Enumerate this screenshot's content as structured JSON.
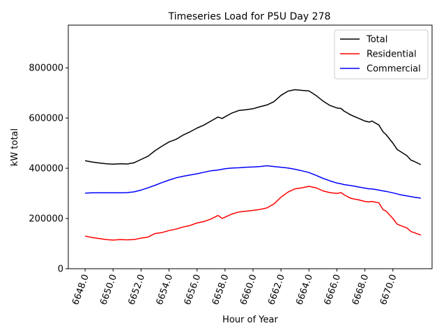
{
  "chart_data": {
    "type": "line",
    "title": "Timeseries Load for P5U   Day 278",
    "xlabel": "Hour of Year",
    "ylabel": "kW total",
    "xlim": [
      6646.8,
      6672.8
    ],
    "ylim": [
      0,
      970000
    ],
    "xticks": [
      6648,
      6650,
      6652,
      6654,
      6656,
      6658,
      6660,
      6662,
      6664,
      6666,
      6668,
      6670
    ],
    "xtick_labels": [
      "6648.0",
      "6650.0",
      "6652.0",
      "6654.0",
      "6656.0",
      "6658.0",
      "6660.0",
      "6662.0",
      "6664.0",
      "6666.0",
      "6668.0",
      "6670.0"
    ],
    "yticks": [
      0,
      200000,
      400000,
      600000,
      800000
    ],
    "ytick_labels": [
      "0",
      "200000",
      "400000",
      "600000",
      "800000"
    ],
    "legend_position": "top-right",
    "series": [
      {
        "name": "Total",
        "color": "#000000",
        "points": [
          [
            6648.0,
            430000
          ],
          [
            6648.5,
            425000
          ],
          [
            6649.0,
            421000
          ],
          [
            6649.5,
            418000
          ],
          [
            6650.0,
            416000
          ],
          [
            6650.5,
            418000
          ],
          [
            6651.0,
            417000
          ],
          [
            6651.5,
            422000
          ],
          [
            6652.0,
            435000
          ],
          [
            6652.5,
            448000
          ],
          [
            6653.0,
            470000
          ],
          [
            6653.5,
            488000
          ],
          [
            6654.0,
            505000
          ],
          [
            6654.5,
            515000
          ],
          [
            6655.0,
            532000
          ],
          [
            6655.5,
            545000
          ],
          [
            6656.0,
            560000
          ],
          [
            6656.5,
            572000
          ],
          [
            6657.0,
            588000
          ],
          [
            6657.5,
            604000
          ],
          [
            6657.8,
            598000
          ],
          [
            6658.0,
            605000
          ],
          [
            6658.5,
            620000
          ],
          [
            6659.0,
            630000
          ],
          [
            6659.5,
            633000
          ],
          [
            6660.0,
            637000
          ],
          [
            6660.5,
            645000
          ],
          [
            6661.0,
            652000
          ],
          [
            6661.5,
            665000
          ],
          [
            6662.0,
            690000
          ],
          [
            6662.5,
            707000
          ],
          [
            6663.0,
            713000
          ],
          [
            6663.5,
            710000
          ],
          [
            6664.0,
            708000
          ],
          [
            6664.5,
            690000
          ],
          [
            6665.0,
            668000
          ],
          [
            6665.5,
            650000
          ],
          [
            6666.0,
            640000
          ],
          [
            6666.3,
            638000
          ],
          [
            6666.5,
            628000
          ],
          [
            6667.0,
            612000
          ],
          [
            6667.5,
            600000
          ],
          [
            6668.0,
            588000
          ],
          [
            6668.3,
            584000
          ],
          [
            6668.5,
            588000
          ],
          [
            6669.0,
            572000
          ],
          [
            6669.3,
            545000
          ],
          [
            6669.5,
            535000
          ],
          [
            6670.0,
            500000
          ],
          [
            6670.3,
            475000
          ],
          [
            6670.5,
            468000
          ],
          [
            6671.0,
            450000
          ],
          [
            6671.3,
            432000
          ],
          [
            6671.5,
            428000
          ],
          [
            6672.0,
            414000
          ]
        ]
      },
      {
        "name": "Residential",
        "color": "#ff0000",
        "points": [
          [
            6648.0,
            130000
          ],
          [
            6648.5,
            124000
          ],
          [
            6649.0,
            120000
          ],
          [
            6649.5,
            116000
          ],
          [
            6650.0,
            114000
          ],
          [
            6650.5,
            116000
          ],
          [
            6651.0,
            115000
          ],
          [
            6651.5,
            116000
          ],
          [
            6652.0,
            122000
          ],
          [
            6652.5,
            126000
          ],
          [
            6653.0,
            140000
          ],
          [
            6653.5,
            144000
          ],
          [
            6654.0,
            152000
          ],
          [
            6654.5,
            158000
          ],
          [
            6655.0,
            166000
          ],
          [
            6655.5,
            172000
          ],
          [
            6656.0,
            182000
          ],
          [
            6656.5,
            188000
          ],
          [
            6657.0,
            198000
          ],
          [
            6657.5,
            212000
          ],
          [
            6657.8,
            200000
          ],
          [
            6658.0,
            205000
          ],
          [
            6658.5,
            218000
          ],
          [
            6659.0,
            226000
          ],
          [
            6659.5,
            229000
          ],
          [
            6660.0,
            232000
          ],
          [
            6660.5,
            236000
          ],
          [
            6661.0,
            242000
          ],
          [
            6661.5,
            258000
          ],
          [
            6662.0,
            285000
          ],
          [
            6662.5,
            305000
          ],
          [
            6663.0,
            318000
          ],
          [
            6663.5,
            322000
          ],
          [
            6664.0,
            328000
          ],
          [
            6664.5,
            322000
          ],
          [
            6665.0,
            310000
          ],
          [
            6665.5,
            303000
          ],
          [
            6666.0,
            300000
          ],
          [
            6666.3,
            303000
          ],
          [
            6666.5,
            295000
          ],
          [
            6667.0,
            280000
          ],
          [
            6667.5,
            275000
          ],
          [
            6668.0,
            268000
          ],
          [
            6668.3,
            266000
          ],
          [
            6668.5,
            268000
          ],
          [
            6669.0,
            262000
          ],
          [
            6669.3,
            235000
          ],
          [
            6669.5,
            230000
          ],
          [
            6670.0,
            200000
          ],
          [
            6670.3,
            178000
          ],
          [
            6670.5,
            173000
          ],
          [
            6671.0,
            162000
          ],
          [
            6671.3,
            148000
          ],
          [
            6671.5,
            144000
          ],
          [
            6672.0,
            134000
          ]
        ]
      },
      {
        "name": "Commercial",
        "color": "#0000ff",
        "points": [
          [
            6648.0,
            301000
          ],
          [
            6648.5,
            302000
          ],
          [
            6649.0,
            302000
          ],
          [
            6649.5,
            302000
          ],
          [
            6650.0,
            302000
          ],
          [
            6650.5,
            302000
          ],
          [
            6651.0,
            303000
          ],
          [
            6651.5,
            306000
          ],
          [
            6652.0,
            313000
          ],
          [
            6652.5,
            322000
          ],
          [
            6653.0,
            332000
          ],
          [
            6653.5,
            343000
          ],
          [
            6654.0,
            353000
          ],
          [
            6654.5,
            362000
          ],
          [
            6655.0,
            368000
          ],
          [
            6655.5,
            373000
          ],
          [
            6656.0,
            378000
          ],
          [
            6656.5,
            384000
          ],
          [
            6657.0,
            390000
          ],
          [
            6657.5,
            393000
          ],
          [
            6657.8,
            396000
          ],
          [
            6658.0,
            398000
          ],
          [
            6658.5,
            401000
          ],
          [
            6659.0,
            402000
          ],
          [
            6659.5,
            404000
          ],
          [
            6660.0,
            405000
          ],
          [
            6660.5,
            407000
          ],
          [
            6661.0,
            410000
          ],
          [
            6661.5,
            407000
          ],
          [
            6662.0,
            404000
          ],
          [
            6662.5,
            401000
          ],
          [
            6663.0,
            396000
          ],
          [
            6663.5,
            390000
          ],
          [
            6664.0,
            383000
          ],
          [
            6664.5,
            372000
          ],
          [
            6665.0,
            360000
          ],
          [
            6665.5,
            350000
          ],
          [
            6666.0,
            341000
          ],
          [
            6666.3,
            338000
          ],
          [
            6666.5,
            335000
          ],
          [
            6667.0,
            331000
          ],
          [
            6667.5,
            326000
          ],
          [
            6668.0,
            321000
          ],
          [
            6668.3,
            318000
          ],
          [
            6668.5,
            318000
          ],
          [
            6669.0,
            313000
          ],
          [
            6669.3,
            310000
          ],
          [
            6669.5,
            308000
          ],
          [
            6670.0,
            302000
          ],
          [
            6670.3,
            298000
          ],
          [
            6670.5,
            295000
          ],
          [
            6671.0,
            290000
          ],
          [
            6671.3,
            287000
          ],
          [
            6671.5,
            285000
          ],
          [
            6672.0,
            281000
          ]
        ]
      }
    ]
  }
}
